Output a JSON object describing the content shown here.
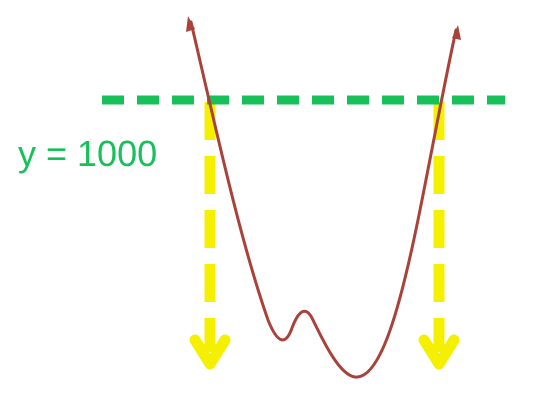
{
  "line_label": "y = 1000",
  "colors": {
    "curve": "#a8423a",
    "horizontal_line": "#18c05a",
    "drop_arrows": "#f4f000",
    "label": "#18c05a",
    "background": "#ffffff"
  }
}
